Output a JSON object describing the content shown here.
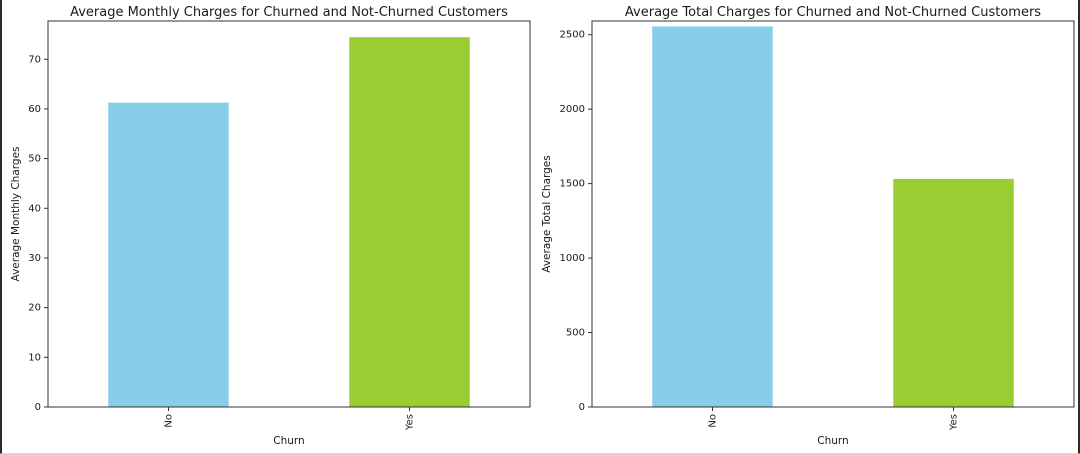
{
  "colors": {
    "bar_no": "#87CEEB",
    "bar_yes": "#9ACD32"
  },
  "chart_data": [
    {
      "type": "bar",
      "title": "Average Monthly Charges for Churned and Not-Churned Customers",
      "xlabel": "Churn",
      "ylabel": "Average Monthly Charges",
      "categories": [
        "No",
        "Yes"
      ],
      "values": [
        61.27,
        74.44
      ],
      "ylim": [
        0,
        77.7
      ],
      "yticks": [
        0,
        10,
        20,
        30,
        40,
        50,
        60,
        70
      ],
      "grid": false,
      "legend": "none"
    },
    {
      "type": "bar",
      "title": "Average Total Charges for Churned and Not-Churned Customers",
      "xlabel": "Churn",
      "ylabel": "Average Total Charges",
      "categories": [
        "No",
        "Yes"
      ],
      "values": [
        2555.34,
        1531.8
      ],
      "ylim": [
        0,
        2592
      ],
      "yticks": [
        0,
        500,
        1000,
        1500,
        2000,
        2500
      ],
      "grid": false,
      "legend": "none"
    }
  ]
}
